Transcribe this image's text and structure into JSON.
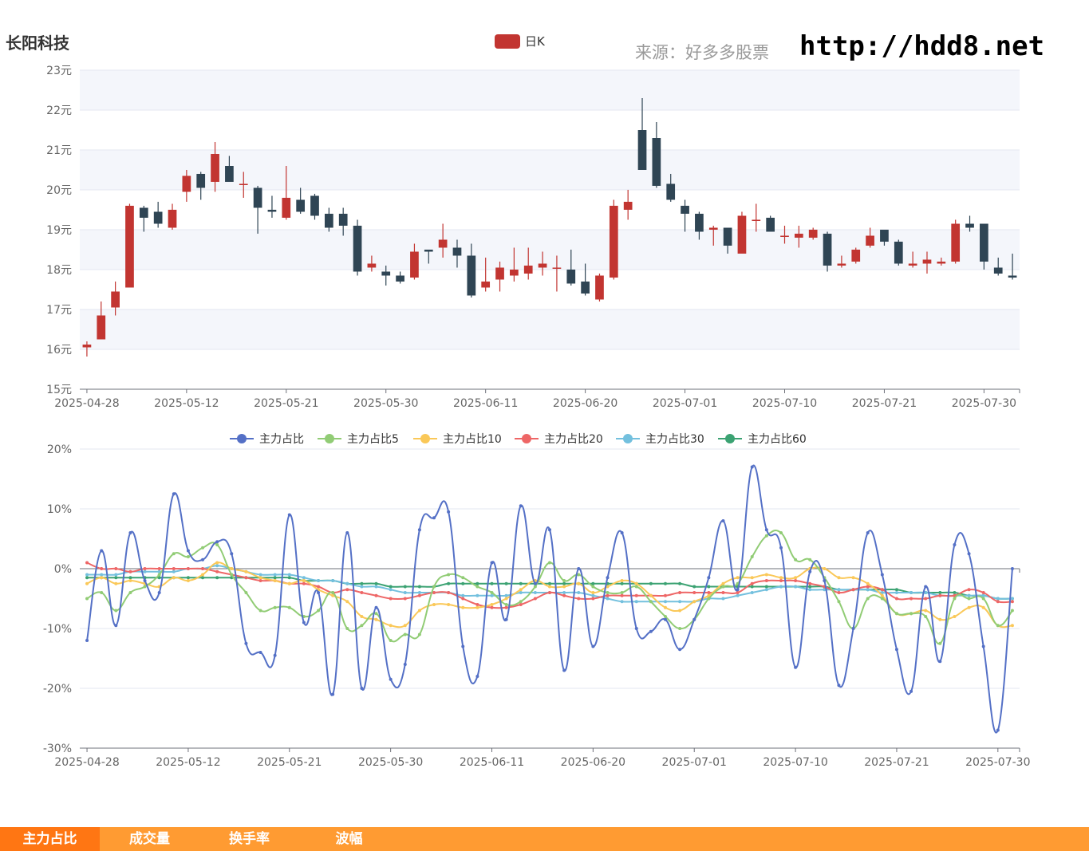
{
  "header": {
    "stock_name": "长阳科技",
    "source_label": "来源：好多多股票",
    "site_url": "http://hdd8.net"
  },
  "tabs": [
    {
      "label": "主力占比",
      "active": true
    },
    {
      "label": "成交量",
      "active": false
    },
    {
      "label": "换手率",
      "active": false
    },
    {
      "label": "波幅",
      "active": false
    }
  ],
  "colors": {
    "up": "#c23531",
    "down": "#2f4554",
    "grid_band": "#f4f6fb",
    "tab_bar": "#ff9b32",
    "tab_active": "#ff7613",
    "series": [
      "#5470c6",
      "#91cc75",
      "#fac858",
      "#ee6666",
      "#73c0de",
      "#3ba272"
    ]
  },
  "chart_data": [
    {
      "type": "candlestick",
      "legend": [
        "日K"
      ],
      "legend_position": "top-center",
      "ylim": [
        15,
        23
      ],
      "y_ticks": [
        "15元",
        "16元",
        "17元",
        "18元",
        "19元",
        "20元",
        "21元",
        "22元",
        "23元"
      ],
      "x_ticks": [
        "2025-04-28",
        "2025-05-12",
        "2025-05-21",
        "2025-05-30",
        "2025-06-11",
        "2025-06-20",
        "2025-07-01",
        "2025-07-10",
        "2025-07-21",
        "2025-07-30"
      ],
      "candles": [
        [
          16.05,
          16.12,
          15.82,
          16.2
        ],
        [
          16.25,
          16.85,
          16.25,
          17.2
        ],
        [
          17.05,
          17.45,
          16.85,
          17.7
        ],
        [
          17.55,
          19.6,
          17.55,
          19.65
        ],
        [
          19.55,
          19.3,
          18.95,
          19.6
        ],
        [
          19.45,
          19.15,
          19.05,
          19.7
        ],
        [
          19.05,
          19.5,
          19.0,
          19.65
        ],
        [
          19.95,
          20.35,
          19.7,
          20.5
        ],
        [
          20.4,
          20.05,
          19.75,
          20.45
        ],
        [
          20.2,
          20.9,
          19.95,
          21.2
        ],
        [
          20.6,
          20.2,
          20.2,
          20.85
        ],
        [
          20.15,
          20.15,
          19.8,
          20.45
        ],
        [
          20.05,
          19.55,
          18.9,
          20.1
        ],
        [
          19.5,
          19.45,
          19.3,
          19.85
        ],
        [
          19.3,
          19.8,
          19.25,
          20.6
        ],
        [
          19.75,
          19.45,
          19.4,
          20.05
        ],
        [
          19.85,
          19.35,
          19.25,
          19.9
        ],
        [
          19.4,
          19.05,
          18.95,
          19.55
        ],
        [
          19.4,
          19.1,
          18.85,
          19.55
        ],
        [
          19.1,
          17.95,
          17.85,
          19.25
        ],
        [
          18.05,
          18.15,
          17.95,
          18.35
        ],
        [
          17.95,
          17.85,
          17.6,
          18.1
        ],
        [
          17.85,
          17.7,
          17.65,
          17.95
        ],
        [
          17.8,
          18.45,
          17.75,
          18.65
        ],
        [
          18.5,
          18.45,
          18.15,
          18.5
        ],
        [
          18.55,
          18.75,
          18.3,
          19.15
        ],
        [
          18.55,
          18.35,
          18.05,
          18.75
        ],
        [
          18.35,
          17.35,
          17.3,
          18.65
        ],
        [
          17.55,
          17.7,
          17.45,
          18.3
        ],
        [
          17.75,
          18.05,
          17.45,
          18.2
        ],
        [
          17.85,
          18.0,
          17.7,
          18.55
        ],
        [
          17.9,
          18.1,
          17.75,
          18.55
        ],
        [
          18.05,
          18.15,
          17.85,
          18.45
        ],
        [
          18.05,
          18.05,
          17.45,
          18.35
        ],
        [
          18.0,
          17.65,
          17.6,
          18.5
        ],
        [
          17.7,
          17.4,
          17.35,
          18.15
        ],
        [
          17.25,
          17.85,
          17.2,
          17.9
        ],
        [
          17.8,
          19.6,
          17.75,
          19.75
        ],
        [
          19.5,
          19.7,
          19.25,
          20.0
        ],
        [
          21.5,
          20.5,
          20.5,
          22.3
        ],
        [
          21.3,
          20.1,
          20.05,
          21.7
        ],
        [
          20.15,
          19.75,
          19.7,
          20.4
        ],
        [
          19.6,
          19.4,
          18.95,
          19.75
        ],
        [
          19.4,
          18.95,
          18.75,
          19.45
        ],
        [
          19.0,
          19.05,
          18.6,
          19.1
        ],
        [
          19.05,
          18.6,
          18.4,
          19.05
        ],
        [
          18.4,
          19.35,
          18.4,
          19.45
        ],
        [
          19.25,
          19.25,
          18.95,
          19.65
        ],
        [
          19.3,
          18.95,
          18.95,
          19.35
        ],
        [
          18.85,
          18.85,
          18.65,
          19.1
        ],
        [
          18.8,
          18.9,
          18.55,
          19.1
        ],
        [
          18.8,
          19.0,
          18.75,
          19.05
        ],
        [
          18.9,
          18.1,
          17.95,
          18.95
        ],
        [
          18.1,
          18.15,
          18.05,
          18.35
        ],
        [
          18.2,
          18.5,
          18.15,
          18.55
        ],
        [
          18.6,
          18.85,
          18.55,
          19.05
        ],
        [
          19.0,
          18.7,
          18.6,
          19.0
        ],
        [
          18.7,
          18.15,
          18.1,
          18.75
        ],
        [
          18.1,
          18.15,
          18.05,
          18.45
        ],
        [
          18.15,
          18.25,
          17.9,
          18.45
        ],
        [
          18.15,
          18.2,
          18.1,
          18.3
        ],
        [
          18.2,
          19.15,
          18.15,
          19.25
        ],
        [
          19.15,
          19.05,
          18.95,
          19.35
        ],
        [
          19.15,
          18.2,
          18.0,
          19.15
        ],
        [
          18.05,
          17.9,
          17.85,
          18.3
        ],
        [
          17.85,
          17.8,
          17.75,
          18.4
        ]
      ]
    },
    {
      "type": "line",
      "legend_position": "top-center",
      "ylim": [
        -30,
        20
      ],
      "y_ticks": [
        "-30%",
        "-20%",
        "-10%",
        "0%",
        "10%",
        "20%"
      ],
      "x_ticks": [
        "2025-04-28",
        "2025-05-12",
        "2025-05-21",
        "2025-05-30",
        "2025-06-11",
        "2025-06-20",
        "2025-07-01",
        "2025-07-10",
        "2025-07-21",
        "2025-07-30"
      ],
      "series": [
        {
          "name": "主力占比",
          "values": [
            -12,
            3,
            -9.5,
            6,
            -2,
            -4,
            12.5,
            3,
            1.5,
            4.5,
            2.5,
            -12.5,
            -14,
            -14.5,
            9,
            -9,
            -4,
            -21,
            6,
            -20,
            -6.5,
            -18.5,
            -16,
            6.5,
            8.5,
            9.5,
            -13,
            -18,
            1,
            -8.5,
            10.5,
            -2.5,
            6.5,
            -17,
            0,
            -13,
            -1.5,
            6,
            -10,
            -10.5,
            -8.5,
            -13.5,
            -8.5,
            -1.5,
            8,
            -3.5,
            17,
            6.5,
            3.5,
            -16.5,
            -0.5,
            -2,
            -19.5,
            -10,
            6,
            -1,
            -13.5,
            -20.5,
            -3,
            -15.5,
            4,
            2.5,
            -13,
            -27,
            0
          ]
        },
        {
          "name": "主力占比5",
          "values": [
            -5,
            -4,
            -7,
            -4,
            -3,
            -1,
            2.5,
            2,
            3.5,
            4,
            -1,
            -4,
            -7,
            -6.5,
            -6.5,
            -8,
            -7,
            -4,
            -10,
            -9.5,
            -7.5,
            -12,
            -11,
            -11,
            -3,
            -1,
            -1.5,
            -3,
            -4,
            -6,
            -5.5,
            -3,
            1,
            -2,
            -1,
            -3,
            -4,
            -4,
            -3,
            -5.5,
            -8,
            -10,
            -8.5,
            -5,
            -3,
            -2.5,
            2,
            5.5,
            6,
            1.5,
            1.5,
            -1.5,
            -5.5,
            -10,
            -5,
            -5,
            -7.5,
            -7.5,
            -8,
            -12.5,
            -5,
            -5,
            -5,
            -9.5,
            -7
          ]
        },
        {
          "name": "主力占比10",
          "values": [
            -2.5,
            -1.5,
            -2.5,
            -2,
            -2.5,
            -3,
            -1.5,
            -2,
            -1,
            1,
            0,
            -0.5,
            -1.5,
            -2,
            -2.5,
            -2,
            -3.5,
            -4.5,
            -5.5,
            -8,
            -8.5,
            -9.5,
            -9.5,
            -7,
            -6,
            -6,
            -6.5,
            -6.5,
            -6,
            -5,
            -3.5,
            -2,
            -3,
            -3,
            -2.5,
            -4,
            -3,
            -2,
            -2.5,
            -4.5,
            -6.5,
            -7,
            -5.5,
            -4.5,
            -2.5,
            -1.5,
            -1.5,
            -1,
            -1.5,
            -1.5,
            0,
            0,
            -1.5,
            -1.5,
            -2.5,
            -4.5,
            -7.5,
            -7.5,
            -7,
            -8.5,
            -8,
            -6.5,
            -6.5,
            -9.5,
            -9.5
          ]
        },
        {
          "name": "主力占比20",
          "values": [
            1,
            0,
            0,
            -0.5,
            0,
            0,
            0,
            0,
            0,
            -0.5,
            -1,
            -1.5,
            -2,
            -2,
            -2.5,
            -2.5,
            -3,
            -4,
            -3.5,
            -4,
            -4.5,
            -5,
            -5,
            -4.5,
            -4,
            -4,
            -5,
            -6,
            -6.5,
            -6.5,
            -6,
            -5,
            -4,
            -4.5,
            -5,
            -5,
            -4.5,
            -4.5,
            -4.5,
            -4.5,
            -4.5,
            -4,
            -4,
            -4,
            -4,
            -4,
            -2.5,
            -2,
            -2,
            -2,
            -2.5,
            -3,
            -4,
            -3.5,
            -3,
            -3.5,
            -5,
            -5,
            -5,
            -4.5,
            -4.5,
            -3.5,
            -4,
            -5.5,
            -5.5
          ]
        },
        {
          "name": "主力占比30",
          "values": [
            -1,
            -1,
            -1,
            -0.5,
            -0.5,
            -0.5,
            -0.5,
            0,
            0,
            0.5,
            0,
            -0.5,
            -1,
            -1,
            -1,
            -1.5,
            -2,
            -2,
            -2.5,
            -3,
            -3,
            -3.5,
            -4,
            -4,
            -4,
            -4,
            -4.5,
            -4.5,
            -4.5,
            -4.5,
            -4,
            -4,
            -4,
            -4,
            -4,
            -4.5,
            -5,
            -5.5,
            -5.5,
            -5.5,
            -5.5,
            -5.5,
            -5.5,
            -5,
            -5,
            -4.5,
            -4,
            -3.5,
            -3,
            -3,
            -3.5,
            -3.5,
            -3.5,
            -3.5,
            -3.5,
            -4,
            -4,
            -4,
            -4,
            -4.5,
            -4.5,
            -4.5,
            -4.5,
            -5,
            -5
          ]
        },
        {
          "name": "主力占比60",
          "values": [
            -1.5,
            -1.5,
            -1.5,
            -1.5,
            -1.5,
            -1.5,
            -1.5,
            -1.5,
            -1.5,
            -1.5,
            -1.5,
            -1.5,
            -1.5,
            -1.5,
            -1.5,
            -2,
            -2,
            -2,
            -2.5,
            -2.5,
            -2.5,
            -3,
            -3,
            -3,
            -3,
            -2.5,
            -2.5,
            -2.5,
            -2.5,
            -2.5,
            -2.5,
            -2.5,
            -2.5,
            -2.5,
            -2.5,
            -2.5,
            -2.5,
            -2.5,
            -2.5,
            -2.5,
            -2.5,
            -2.5,
            -3,
            -3,
            -3,
            -3,
            -3,
            -3,
            -3,
            -3,
            -3,
            -3,
            -3.5,
            -3.5,
            -3.5,
            -3.5,
            -3.5,
            -4,
            -4,
            -4,
            -4,
            -4.5,
            -4.5,
            -5,
            -5
          ]
        }
      ]
    }
  ]
}
